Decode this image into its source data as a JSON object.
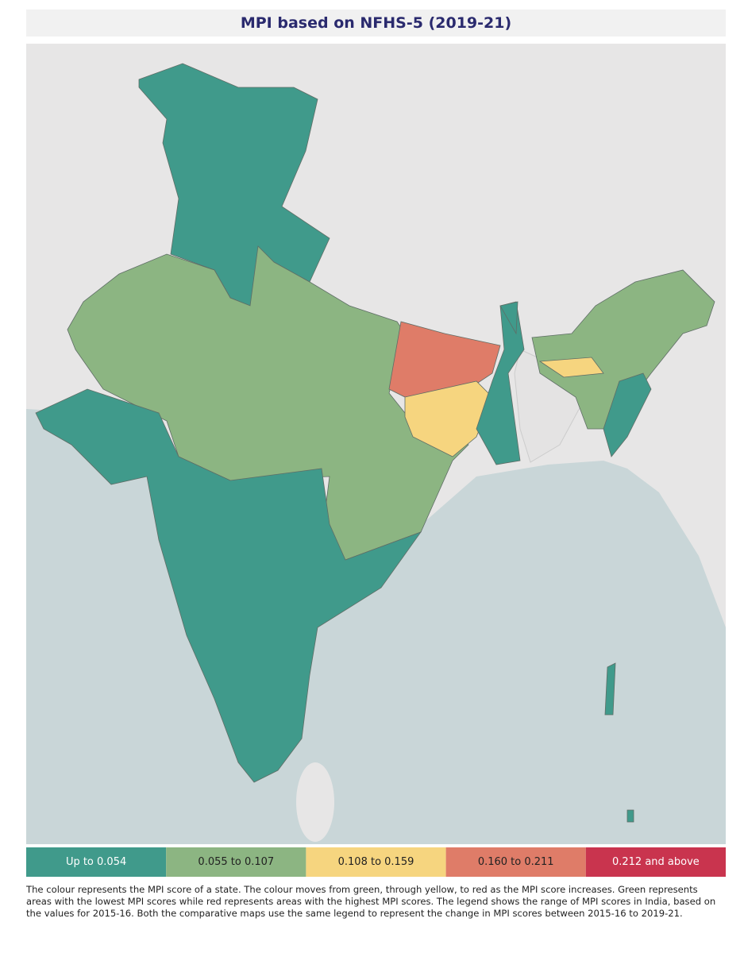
{
  "title": "MPI based on NFHS-5 (2019-21)",
  "legend": [
    {
      "label": "Up to 0.054",
      "color": "#409a8b"
    },
    {
      "label": "0.055 to 0.107",
      "color": "#8cb582"
    },
    {
      "label": "0.108 to 0.159",
      "color": "#f6d57f"
    },
    {
      "label": "0.160 to 0.211",
      "color": "#df7c68"
    },
    {
      "label": "0.212 and above",
      "color": "#c9344e"
    }
  ],
  "caption": "The colour represents the MPI score of a state. The colour moves from green, through yellow, to red as the MPI score increases. Green represents areas with the lowest MPI scores while red represents areas with the highest MPI scores. The legend shows the range of MPI scores in India, based on the values for 2015-16. Both the comparative maps use the same legend to represent the change in MPI scores between 2015-16 to 2019-21."
}
